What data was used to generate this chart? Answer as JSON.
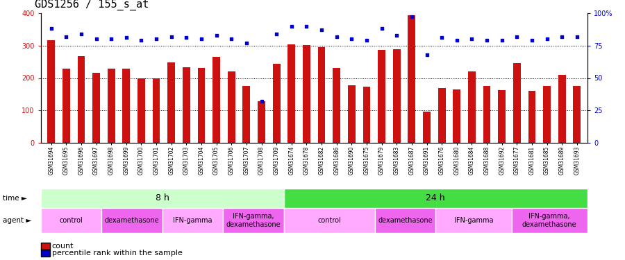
{
  "title": "GDS1256 / 155_s_at",
  "samples": [
    "GSM31694",
    "GSM31695",
    "GSM31696",
    "GSM31697",
    "GSM31698",
    "GSM31699",
    "GSM31700",
    "GSM31701",
    "GSM31702",
    "GSM31703",
    "GSM31704",
    "GSM31705",
    "GSM31706",
    "GSM31707",
    "GSM31708",
    "GSM31709",
    "GSM31674",
    "GSM31678",
    "GSM31682",
    "GSM31686",
    "GSM31690",
    "GSM31675",
    "GSM31679",
    "GSM31683",
    "GSM31687",
    "GSM31691",
    "GSM31676",
    "GSM31680",
    "GSM31684",
    "GSM31688",
    "GSM31692",
    "GSM31677",
    "GSM31681",
    "GSM31685",
    "GSM31689",
    "GSM31693"
  ],
  "counts": [
    317,
    228,
    268,
    215,
    228,
    228,
    199,
    199,
    247,
    233,
    230,
    265,
    220,
    175,
    128,
    244,
    303,
    301,
    295,
    232,
    178,
    174,
    286,
    289,
    393,
    97,
    170,
    165,
    220,
    175,
    163,
    246,
    160,
    175,
    210,
    176
  ],
  "percentile": [
    88,
    82,
    84,
    80,
    80,
    81,
    79,
    80,
    82,
    81,
    80,
    83,
    80,
    77,
    32,
    84,
    90,
    90,
    87,
    82,
    80,
    79,
    88,
    83,
    97,
    68,
    81,
    79,
    80,
    79,
    79,
    82,
    79,
    80,
    82,
    82
  ],
  "bar_color": "#cc1111",
  "dot_color": "#0000cc",
  "ylim_left": [
    0,
    400
  ],
  "ylim_right": [
    0,
    100
  ],
  "yticks_left": [
    0,
    100,
    200,
    300,
    400
  ],
  "yticks_right": [
    0,
    25,
    50,
    75,
    100
  ],
  "grid_values": [
    100,
    200,
    300
  ],
  "time_groups": [
    {
      "label": "8 h",
      "start": 0,
      "end": 16,
      "color": "#ccffcc"
    },
    {
      "label": "24 h",
      "start": 16,
      "end": 36,
      "color": "#44dd44"
    }
  ],
  "agent_groups": [
    {
      "label": "control",
      "start": 0,
      "end": 4,
      "color": "#ffaaff"
    },
    {
      "label": "dexamethasone",
      "start": 4,
      "end": 8,
      "color": "#ee66ee"
    },
    {
      "label": "IFN-gamma",
      "start": 8,
      "end": 12,
      "color": "#ffaaff"
    },
    {
      "label": "IFN-gamma,\ndexamethasone",
      "start": 12,
      "end": 16,
      "color": "#ee66ee"
    },
    {
      "label": "control",
      "start": 16,
      "end": 22,
      "color": "#ffaaff"
    },
    {
      "label": "dexamethasone",
      "start": 22,
      "end": 26,
      "color": "#ee66ee"
    },
    {
      "label": "IFN-gamma",
      "start": 26,
      "end": 31,
      "color": "#ffaaff"
    },
    {
      "label": "IFN-gamma,\ndexamethasone",
      "start": 31,
      "end": 36,
      "color": "#ee66ee"
    }
  ],
  "title_fontsize": 11,
  "tick_fontsize": 6,
  "label_fontsize": 8
}
